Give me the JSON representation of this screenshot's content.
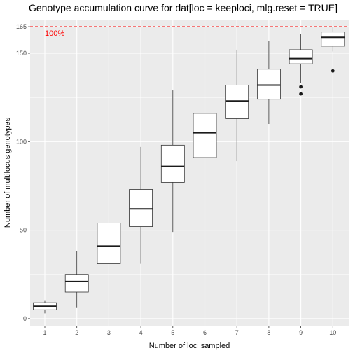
{
  "chart_data": {
    "type": "boxplot",
    "title": "Genotype accumulation curve for dat[loc = keeploci, mlg.reset = TRUE]",
    "xlabel": "Number of loci sampled",
    "ylabel": "Number of multilocus genotypes",
    "x_ticks": [
      "1",
      "2",
      "3",
      "4",
      "5",
      "6",
      "7",
      "8",
      "9",
      "10"
    ],
    "y_ticks": [
      0,
      50,
      100,
      150,
      165
    ],
    "y_tick_labels": [
      "0",
      "50",
      "100",
      "150",
      "165"
    ],
    "ylim": [
      -4,
      169
    ],
    "grid": true,
    "reference_line": {
      "value": 165,
      "label": "100%",
      "color": "#ff0000"
    },
    "boxes": [
      {
        "x": "1",
        "whisker_low": 3,
        "q1": 5,
        "median": 7,
        "q3": 9,
        "whisker_high": 10,
        "outliers": []
      },
      {
        "x": "2",
        "whisker_low": 6,
        "q1": 15,
        "median": 21,
        "q3": 25,
        "whisker_high": 38,
        "outliers": []
      },
      {
        "x": "3",
        "whisker_low": 13,
        "q1": 31,
        "median": 41,
        "q3": 54,
        "whisker_high": 79,
        "outliers": []
      },
      {
        "x": "4",
        "whisker_low": 31,
        "q1": 52,
        "median": 62,
        "q3": 73,
        "whisker_high": 97,
        "outliers": []
      },
      {
        "x": "5",
        "whisker_low": 49,
        "q1": 77,
        "median": 86,
        "q3": 98,
        "whisker_high": 129,
        "outliers": []
      },
      {
        "x": "6",
        "whisker_low": 68,
        "q1": 91,
        "median": 105,
        "q3": 116,
        "whisker_high": 143,
        "outliers": []
      },
      {
        "x": "7",
        "whisker_low": 89,
        "q1": 113,
        "median": 123,
        "q3": 132,
        "whisker_high": 152,
        "outliers": []
      },
      {
        "x": "8",
        "whisker_low": 110,
        "q1": 124,
        "median": 132,
        "q3": 141,
        "whisker_high": 157,
        "outliers": []
      },
      {
        "x": "9",
        "whisker_low": 133,
        "q1": 144,
        "median": 147,
        "q3": 152,
        "whisker_high": 161,
        "outliers": [
          131,
          127
        ]
      },
      {
        "x": "10",
        "whisker_low": 151,
        "q1": 154,
        "median": 159,
        "q3": 162,
        "whisker_high": 165,
        "outliers": [
          140
        ]
      }
    ],
    "colors": {
      "panel_background": "#ebebeb",
      "grid_major": "#ffffff",
      "box_fill": "#ffffff",
      "box_stroke": "#333333",
      "median": "#1a1a1a",
      "reference_line": "#ff0000"
    }
  }
}
